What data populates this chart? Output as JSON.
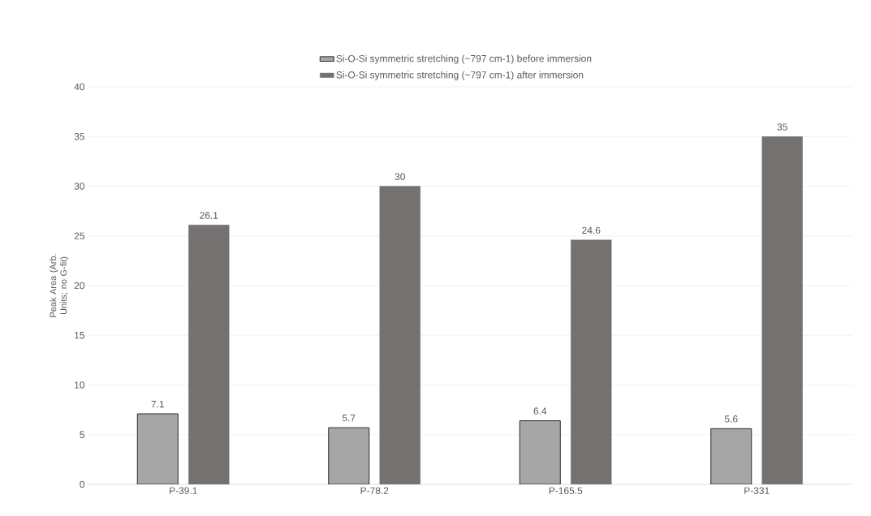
{
  "chart_data": {
    "type": "bar",
    "ylabel": "Peak Area (Arb. Units; no G-fit)",
    "categories": [
      "P-39.1",
      "P-78.2",
      "P-165.5",
      "P-331"
    ],
    "series": [
      {
        "name": "Si-O-Si symmetric stretching (~797 cm-1) before immersion",
        "color": "#a6a6a6",
        "values": [
          7.1,
          5.7,
          6.4,
          5.6
        ]
      },
      {
        "name": "Si-O-Si symmetric stretching (~797 cm-1) after immersion",
        "color": "#767171",
        "values": [
          26.1,
          30,
          24.6,
          35
        ]
      }
    ],
    "ylim": [
      0,
      40
    ],
    "yticks": [
      0,
      5,
      10,
      15,
      20,
      25,
      30,
      35,
      40
    ],
    "grid": "y",
    "legend": "top",
    "data_labels": true
  }
}
